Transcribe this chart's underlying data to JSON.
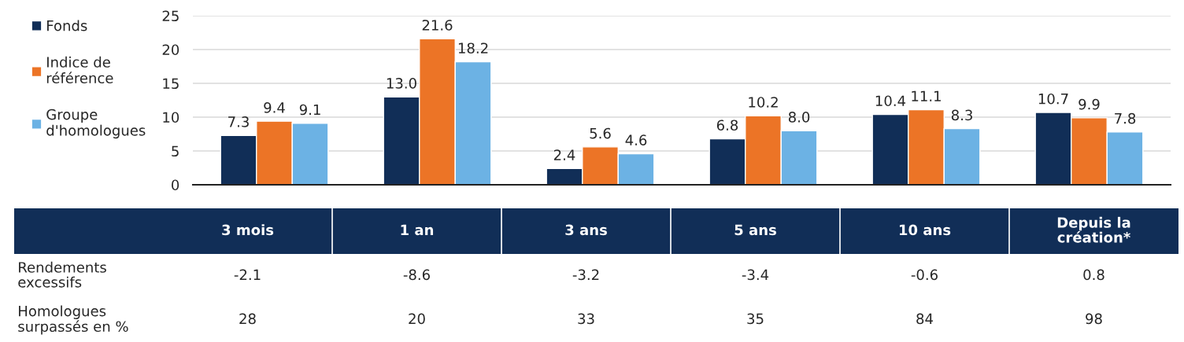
{
  "chart_data": [
    {
      "type": "bar",
      "categories": [
        null,
        null,
        null,
        null,
        null,
        null
      ],
      "series": [
        {
          "name": "Fonds",
          "color": "#112e57",
          "values": [
            7.3,
            13.0,
            2.4,
            6.8,
            10.4,
            10.7
          ],
          "value_labels": [
            "7.3",
            "13.0",
            "2.4",
            "6.8",
            "10.4",
            "10.7"
          ]
        },
        {
          "name": "Indice de\nréférence",
          "color": "#ec7426",
          "values": [
            9.4,
            21.6,
            5.6,
            10.2,
            11.1,
            9.9
          ],
          "value_labels": [
            "9.4",
            "21.6",
            "5.6",
            "10.2",
            "11.1",
            "9.9"
          ]
        },
        {
          "name": "Groupe\nd'homologues",
          "color": "#6cb2e4",
          "values": [
            9.1,
            18.2,
            4.6,
            8.0,
            8.3,
            7.8
          ],
          "value_labels": [
            "9.1",
            "18.2",
            "4.6",
            "8.0",
            "8.3",
            "7.8"
          ]
        }
      ],
      "ylim": [
        0,
        25
      ],
      "yticks": [
        0,
        5,
        10,
        15,
        20,
        25
      ],
      "grid": "y",
      "legend": "left"
    },
    {
      "type": "other",
      "categories": [
        "3 mois",
        "1 an",
        "3 ans",
        "5 ans",
        "10 ans",
        "Depuis la\ncréation*"
      ],
      "series": [
        {
          "name": "Rendements\nexcessifs",
          "values": [
            -2.1,
            -8.6,
            -3.2,
            -3.4,
            -0.6,
            0.8
          ]
        },
        {
          "name": "Homologues\nsurpassés en %",
          "values": [
            28,
            20,
            33,
            35,
            84,
            98
          ]
        }
      ],
      "data_labels": true
    }
  ]
}
